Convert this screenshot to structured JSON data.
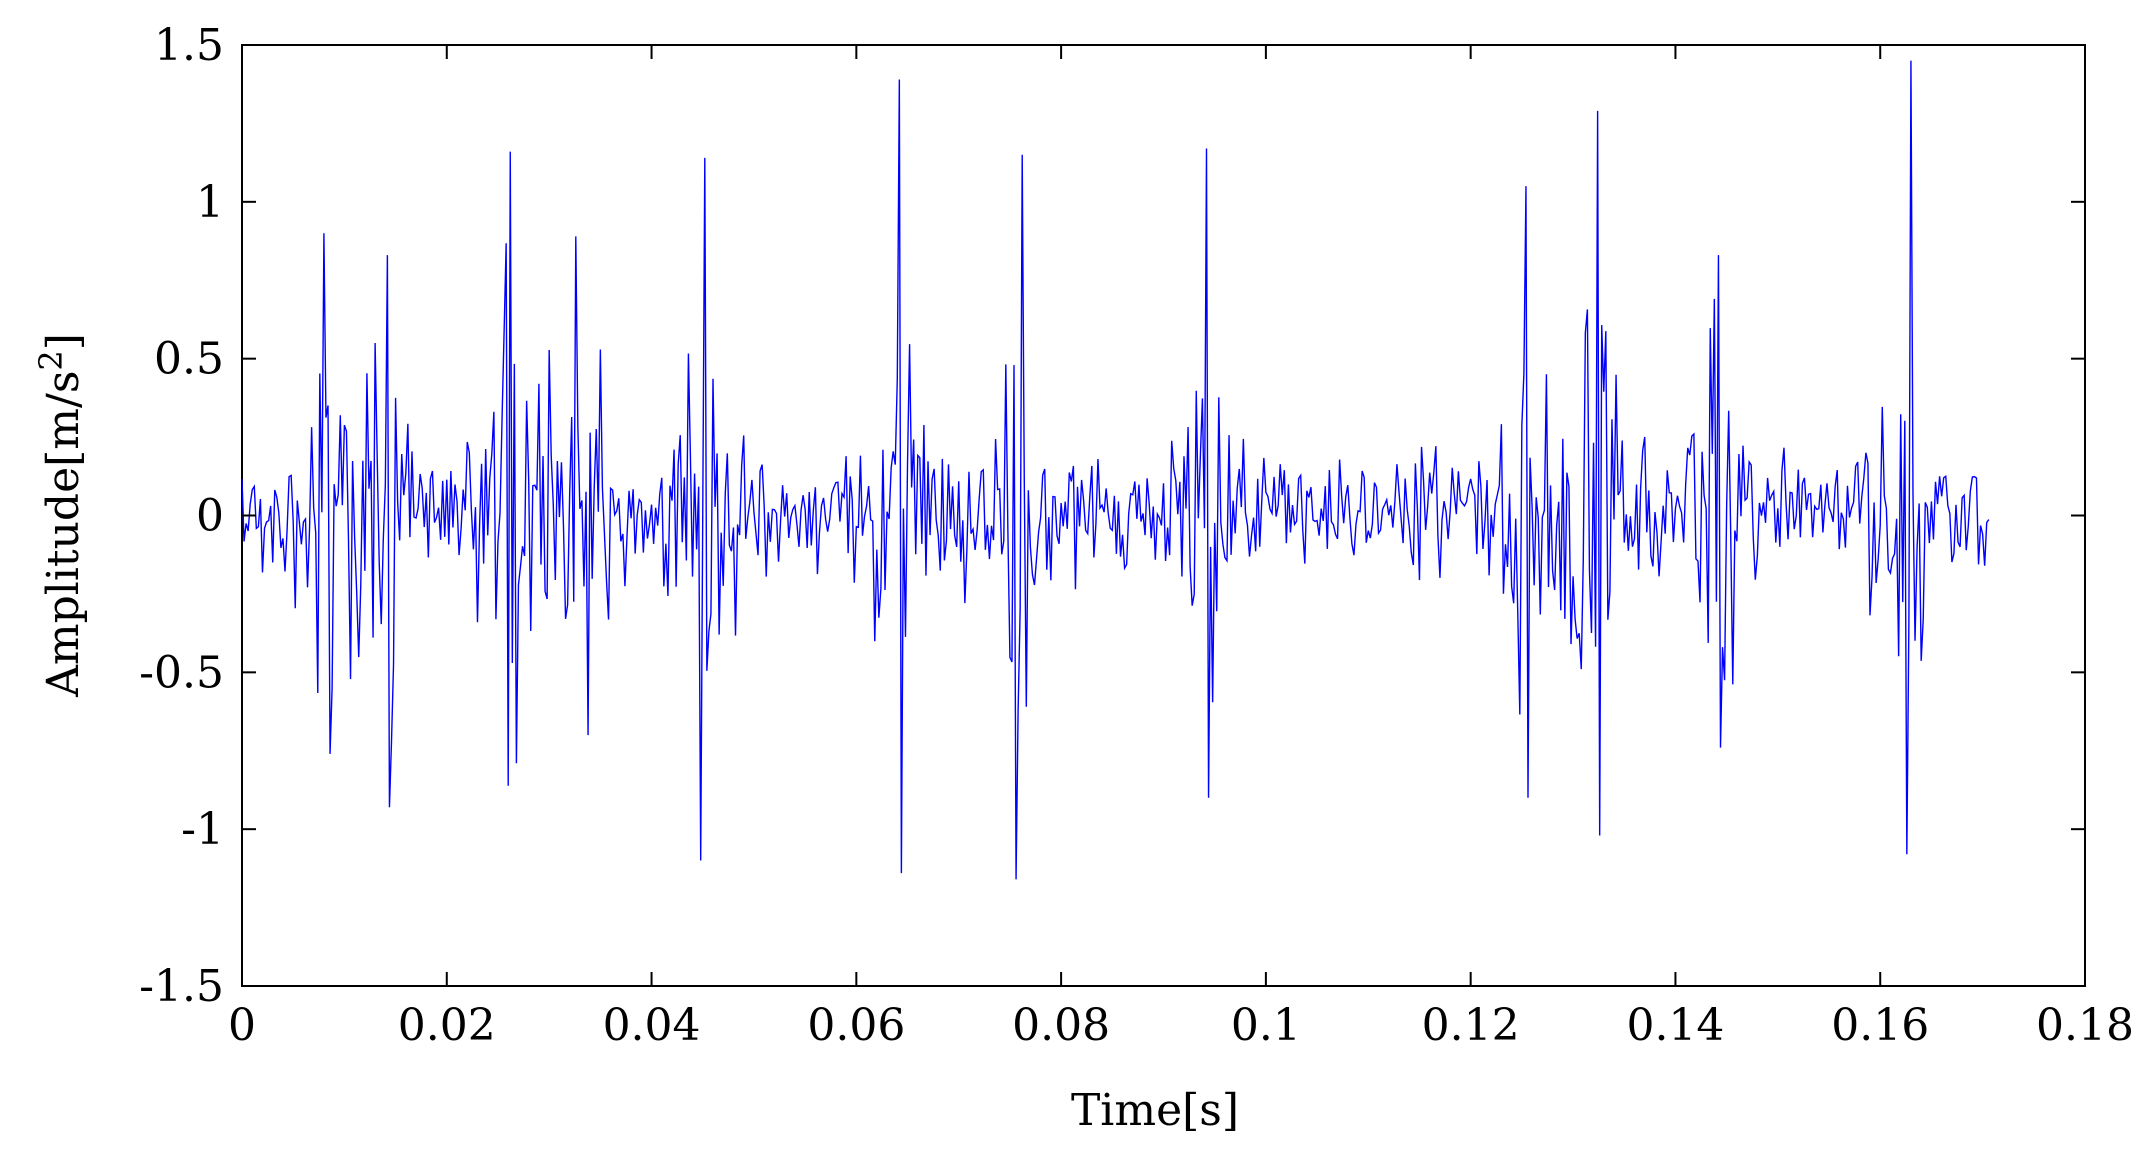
{
  "chart_data": {
    "type": "line",
    "title": "",
    "xlabel": "Time[s]",
    "ylabel_main": "Amplitude[m/s",
    "ylabel_sup": "2",
    "ylabel_close": "]",
    "xlim": [
      0,
      0.18
    ],
    "ylim": [
      -1.5,
      1.5
    ],
    "xticks": [
      0,
      0.02,
      0.04,
      0.06,
      0.08,
      0.1,
      0.12,
      0.14,
      0.16,
      0.18
    ],
    "xtick_labels": [
      "0",
      "0.02",
      "0.04",
      "0.06",
      "0.08",
      "0.1",
      "0.12",
      "0.14",
      "0.16",
      "0.18"
    ],
    "yticks": [
      1.5,
      1,
      0.5,
      0,
      -0.5,
      -1,
      -1.5
    ],
    "ytick_labels": [
      "1.5",
      "1",
      "0.5",
      "0",
      "-0.5",
      "-1",
      "-1.5"
    ],
    "grid": false,
    "legend": "none",
    "series": [
      {
        "color": "#0000ff",
        "sample_interval": 0.0002,
        "x_start": 0,
        "x_end": 0.1706,
        "peaks": [
          {
            "x": 0.0081,
            "y": 0.9
          },
          {
            "x": 0.0083,
            "y": -0.76
          },
          {
            "x": 0.0142,
            "y": 0.83
          },
          {
            "x": 0.0142,
            "y": -0.93
          },
          {
            "x": 0.0261,
            "y": 1.16
          },
          {
            "x": 0.0267,
            "y": -0.79
          },
          {
            "x": 0.0325,
            "y": 0.89
          },
          {
            "x": 0.0335,
            "y": -0.7
          },
          {
            "x": 0.0452,
            "y": 1.14
          },
          {
            "x": 0.0448,
            "y": -1.1
          },
          {
            "x": 0.0642,
            "y": 1.39
          },
          {
            "x": 0.0642,
            "y": -1.14
          },
          {
            "x": 0.0762,
            "y": 1.15
          },
          {
            "x": 0.0753,
            "y": -1.16
          },
          {
            "x": 0.0943,
            "y": 1.17
          },
          {
            "x": 0.0943,
            "y": -0.9
          },
          {
            "x": 0.1253,
            "y": 1.05
          },
          {
            "x": 0.1253,
            "y": -0.9
          },
          {
            "x": 0.1323,
            "y": 1.29
          },
          {
            "x": 0.1323,
            "y": -1.02
          },
          {
            "x": 0.1442,
            "y": 0.83
          },
          {
            "x": 0.1442,
            "y": -0.74
          },
          {
            "x": 0.1631,
            "y": 1.48
          },
          {
            "x": 0.1624,
            "y": -1.08
          }
        ]
      }
    ]
  }
}
